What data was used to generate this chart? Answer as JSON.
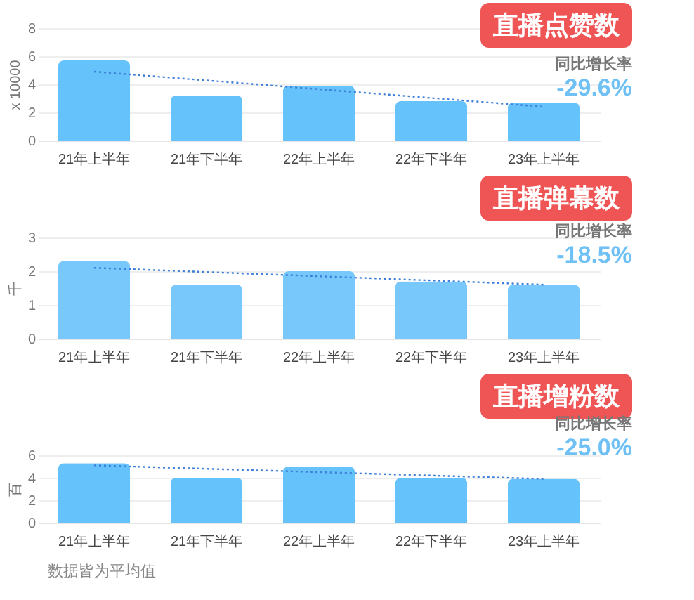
{
  "chart_data": [
    {
      "type": "bar",
      "title": "直播点赞数",
      "ylabel": "x 10000",
      "categories": [
        "21年上半年",
        "21年下半年",
        "22年上半年",
        "22年下半年",
        "23年上半年"
      ],
      "series": [
        {
          "color": "#66c2fa",
          "values": [
            5.7,
            3.2,
            3.9,
            2.8,
            2.7
          ]
        },
        {
          "type": "line",
          "color": "#3d7fd9",
          "line_style": "dotted",
          "x": [
            "21年上半年",
            "23年上半年"
          ],
          "values": [
            4.9,
            2.4
          ]
        }
      ],
      "ylim": [
        0,
        8
      ],
      "yticks": [
        0,
        2,
        4,
        6,
        8
      ],
      "grid": "y",
      "annotations": [
        "同比增长率",
        "-29.6%"
      ]
    },
    {
      "type": "bar",
      "title": "直播弹幕数",
      "ylabel": "千",
      "categories": [
        "21年上半年",
        "21年下半年",
        "22年上半年",
        "22年下半年",
        "23年上半年"
      ],
      "series": [
        {
          "color": "#78c8fb",
          "values": [
            2.3,
            1.6,
            2.0,
            1.7,
            1.6
          ]
        },
        {
          "type": "line",
          "color": "#3d7fd9",
          "line_style": "dotted",
          "x": [
            "21年上半年",
            "23年上半年"
          ],
          "values": [
            2.1,
            1.6
          ]
        }
      ],
      "ylim": [
        0,
        3
      ],
      "yticks": [
        0,
        1,
        2,
        3
      ],
      "grid": "y",
      "annotations": [
        "同比增长率",
        "-18.5%"
      ]
    },
    {
      "type": "bar",
      "title": "直播增粉数",
      "ylabel": "百",
      "categories": [
        "21年上半年",
        "21年下半年",
        "22年上半年",
        "22年下半年",
        "23年上半年"
      ],
      "series": [
        {
          "color": "#66c2fa",
          "values": [
            5.3,
            4.0,
            5.0,
            4.0,
            3.9
          ]
        },
        {
          "type": "line",
          "color": "#3d7fd9",
          "line_style": "dotted",
          "x": [
            "21年上半年",
            "23年上半年"
          ],
          "values": [
            5.1,
            3.9
          ]
        }
      ],
      "ylim": [
        0,
        6
      ],
      "yticks": [
        0,
        2,
        4,
        6
      ],
      "grid": "y",
      "annotations": [
        "同比增长率",
        "-25.0%",
        "数据皆为平均值"
      ]
    }
  ]
}
